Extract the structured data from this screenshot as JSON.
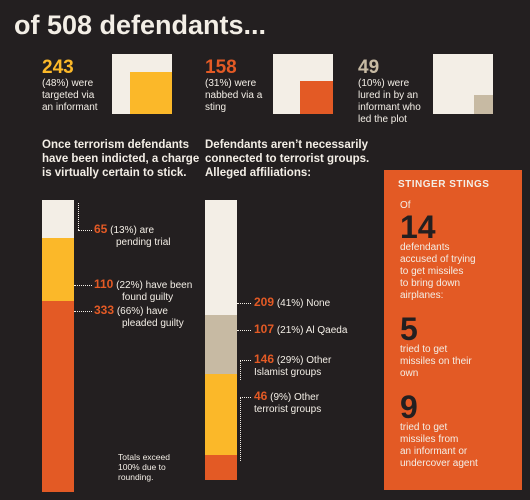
{
  "title": "of 508 defendants...",
  "colors": {
    "background": "#231f20",
    "cream": "#f3eee6",
    "yellow": "#fbb829",
    "orange": "#e35a25",
    "tan": "#c7baa3"
  },
  "stats": [
    {
      "number": "243",
      "lines": [
        "(48%) were",
        "targeted via",
        "an informant"
      ],
      "color": "#fbb829"
    },
    {
      "number": "158",
      "lines": [
        "(31%) were",
        "nabbed via a",
        "sting"
      ],
      "color": "#e35a25"
    },
    {
      "number": "49",
      "lines": [
        "(10%) were",
        "lured in by an",
        "informant who",
        "led the plot"
      ],
      "color": "#c7baa3"
    }
  ],
  "left_heading": [
    "Once terrorism defendants",
    "have been indicted, a charge",
    "is virtually certain to stick."
  ],
  "mid_heading": [
    "Defendants aren’t necessarily",
    "connected to terrorist groups.",
    "Alleged affiliations:"
  ],
  "note": [
    "Totals exceed",
    "100% due to",
    "rounding."
  ],
  "chart_data": [
    {
      "type": "stacked-bar",
      "series": [
        {
          "label": "pending trial",
          "count": 65,
          "percent": 13,
          "color": "#f3eee6",
          "lines": [
            "(13%) are",
            "pending trial"
          ]
        },
        {
          "label": "found guilty",
          "count": 110,
          "percent": 22,
          "color": "#fbb829",
          "lines": [
            "(22%) have been",
            "found guilty"
          ]
        },
        {
          "label": "pleaded guilty",
          "count": 333,
          "percent": 66,
          "color": "#e35a25",
          "lines": [
            "(66%) have",
            "pleaded guilty"
          ]
        }
      ]
    },
    {
      "type": "stacked-bar",
      "series": [
        {
          "label": "None",
          "count": 209,
          "percent": 41,
          "color": "#f3eee6",
          "lines": [
            "(41%) None"
          ]
        },
        {
          "label": "Al Qaeda",
          "count": 107,
          "percent": 21,
          "color": "#c7baa3",
          "lines": [
            "(21%) Al Qaeda"
          ]
        },
        {
          "label": "Other Islamist groups",
          "count": 146,
          "percent": 29,
          "color": "#fbb829",
          "lines": [
            "(29%) Other",
            "Islamist groups"
          ]
        },
        {
          "label": "Other terrorist groups",
          "count": 46,
          "percent": 9,
          "color": "#e35a25",
          "lines": [
            "(9%) Other",
            "terrorist groups"
          ]
        }
      ]
    }
  ],
  "stinger": {
    "title": "STINGER STINGS",
    "of": "Of",
    "n1": "14",
    "t1": [
      "defendants",
      "accused of trying",
      "to get missiles",
      "to bring down",
      "airplanes:"
    ],
    "n2": "5",
    "t2": [
      "tried to get",
      "missiles on their",
      "own"
    ],
    "n3": "9",
    "t3": [
      "tried to get",
      "missiles from",
      "an informant or",
      "undercover agent"
    ]
  }
}
